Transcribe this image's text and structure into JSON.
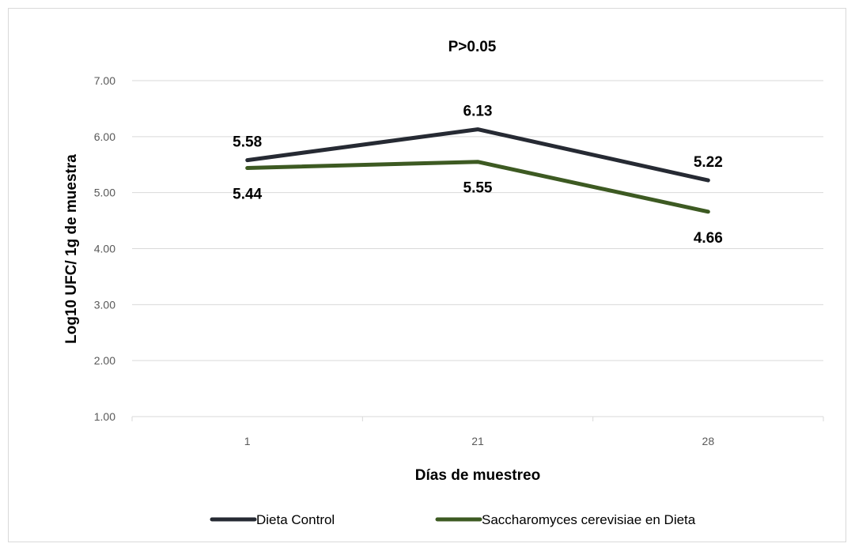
{
  "chart_data": {
    "type": "line",
    "title": "P>0.05",
    "xlabel": "Días de muestreo",
    "ylabel": "Log10 UFC/ 1g de muestra",
    "categories": [
      "1",
      "21",
      "28"
    ],
    "ylim": [
      1.0,
      7.0
    ],
    "yticks": [
      "1.00",
      "2.00",
      "3.00",
      "4.00",
      "5.00",
      "6.00",
      "7.00"
    ],
    "grid": true,
    "legend_position": "bottom",
    "series": [
      {
        "name": "Dieta Control",
        "color": "#262a33",
        "values": [
          5.58,
          6.13,
          5.22
        ],
        "labels": [
          "5.58",
          "6.13",
          "5.22"
        ],
        "label_position": "above"
      },
      {
        "name": "Saccharomyces cerevisiae en Dieta",
        "color": "#3d5a22",
        "values": [
          5.44,
          5.55,
          4.66
        ],
        "labels": [
          "5.44",
          "5.55",
          "4.66"
        ],
        "label_position": "below"
      }
    ]
  }
}
